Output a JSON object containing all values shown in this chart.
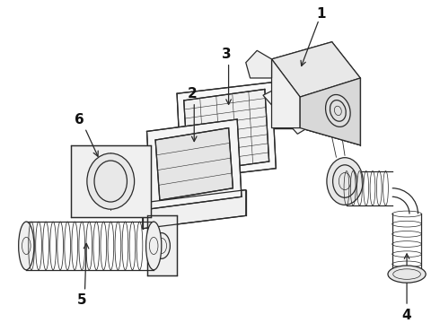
{
  "bg_color": "#ffffff",
  "line_color": "#2a2a2a",
  "label_color": "#111111",
  "figsize": [
    4.9,
    3.6
  ],
  "dpi": 100,
  "lw": 0.9
}
